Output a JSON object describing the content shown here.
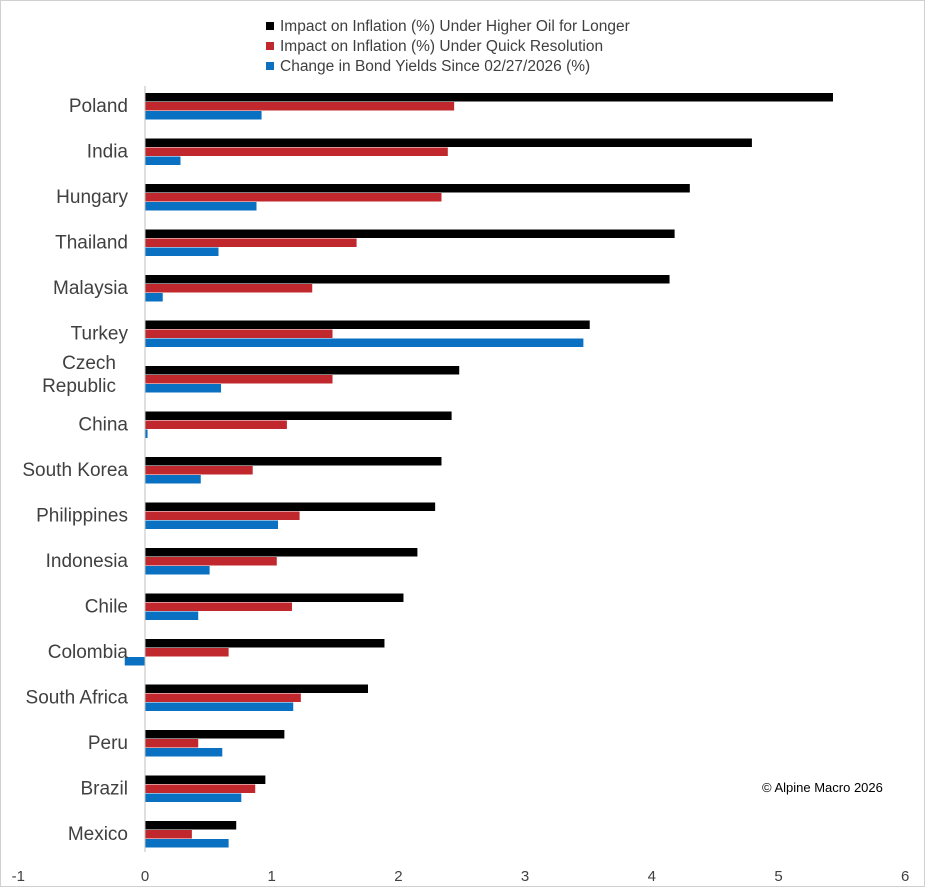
{
  "chart_data": {
    "type": "bar",
    "orientation": "horizontal",
    "title": "",
    "xlabel": "",
    "ylabel": "",
    "xlim": [
      -1,
      6
    ],
    "xticks": [
      "-1",
      "0",
      "1",
      "2",
      "3",
      "4",
      "5",
      "6"
    ],
    "grid": false,
    "legend_position": "top",
    "categories": [
      "Poland",
      "India",
      "Hungary",
      "Thailand",
      "Malaysia",
      "Turkey",
      "Czech Republic",
      "China",
      "South Korea",
      "Philippines",
      "Indonesia",
      "Chile",
      "Colombia",
      "South Africa",
      "Peru",
      "Brazil",
      "Mexico"
    ],
    "series": [
      {
        "name": "Impact on Inflation (%) Under Higher Oil for Longer",
        "color": "#000000",
        "values": [
          5.43,
          4.79,
          4.3,
          4.18,
          4.14,
          3.51,
          2.48,
          2.42,
          2.34,
          2.29,
          2.15,
          2.04,
          1.89,
          1.76,
          1.1,
          0.95,
          0.72
        ]
      },
      {
        "name": "Impact on Inflation (%) Under Quick Resolution",
        "color": "#c0282d",
        "values": [
          2.44,
          2.39,
          2.34,
          1.67,
          1.32,
          1.48,
          1.48,
          1.12,
          0.85,
          1.22,
          1.04,
          1.16,
          0.66,
          1.23,
          0.42,
          0.87,
          0.37
        ]
      },
      {
        "name": "Change in Bond Yields Since 02/27/2026 (%)",
        "color": "#0a70c2",
        "values": [
          0.92,
          0.28,
          0.88,
          0.58,
          0.14,
          3.46,
          0.6,
          0.02,
          0.44,
          1.05,
          0.51,
          0.42,
          -0.16,
          1.17,
          0.61,
          0.76,
          0.66
        ]
      }
    ],
    "annotation": "© Alpine Macro 2026"
  }
}
